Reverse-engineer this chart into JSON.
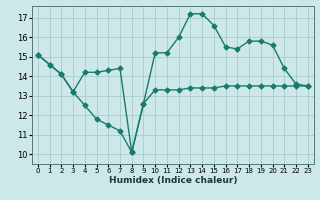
{
  "title": "",
  "xlabel": "Humidex (Indice chaleur)",
  "x_ticks": [
    0,
    1,
    2,
    3,
    4,
    5,
    6,
    7,
    8,
    9,
    10,
    11,
    12,
    13,
    14,
    15,
    16,
    17,
    18,
    19,
    20,
    21,
    22,
    23
  ],
  "ylim": [
    9.5,
    17.6
  ],
  "xlim": [
    -0.5,
    23.5
  ],
  "yticks": [
    10,
    11,
    12,
    13,
    14,
    15,
    16,
    17
  ],
  "bg_color": "#cce8e8",
  "grid_color": "#aacccc",
  "line_color": "#1a7a6e",
  "series1": [
    15.1,
    14.6,
    14.1,
    13.2,
    14.2,
    14.2,
    14.3,
    14.4,
    10.1,
    12.6,
    15.2,
    15.2,
    16.0,
    17.2,
    17.2,
    16.6,
    15.5,
    15.4,
    15.8,
    15.8,
    15.6,
    14.4,
    13.6,
    13.5
  ],
  "series2": [
    15.1,
    14.6,
    14.1,
    13.2,
    12.5,
    11.8,
    11.5,
    11.2,
    10.1,
    12.6,
    13.3,
    13.3,
    13.3,
    13.4,
    13.4,
    13.4,
    13.5,
    13.5,
    13.5,
    13.5,
    13.5,
    13.5,
    13.5,
    13.5
  ],
  "line_width": 1.0,
  "marker_size": 2.5,
  "tick_fontsize": 6.0,
  "xlabel_fontsize": 6.5
}
